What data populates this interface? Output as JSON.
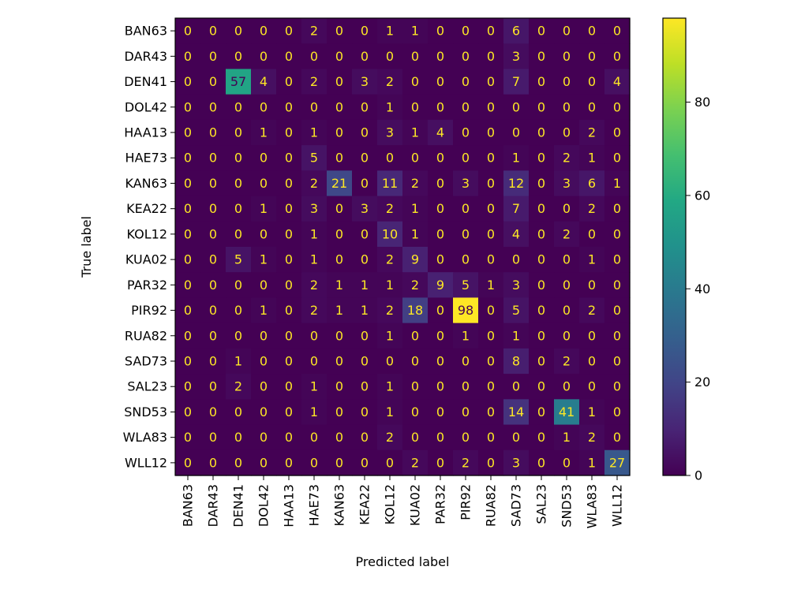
{
  "chart_data": {
    "type": "heatmap",
    "title": "",
    "xlabel": "Predicted label",
    "ylabel": "True label",
    "x_categories": [
      "BAN63",
      "DAR43",
      "DEN41",
      "DOL42",
      "HAA13",
      "HAE73",
      "KAN63",
      "KEA22",
      "KOL12",
      "KUA02",
      "PAR32",
      "PIR92",
      "RUA82",
      "SAD73",
      "SAL23",
      "SND53",
      "WLA83",
      "WLL12"
    ],
    "y_categories": [
      "BAN63",
      "DAR43",
      "DEN41",
      "DOL42",
      "HAA13",
      "HAE73",
      "KAN63",
      "KEA22",
      "KOL12",
      "KUA02",
      "PAR32",
      "PIR92",
      "RUA82",
      "SAD73",
      "SAL23",
      "SND53",
      "WLA83",
      "WLL12"
    ],
    "values": [
      [
        0,
        0,
        0,
        0,
        0,
        2,
        0,
        0,
        1,
        1,
        0,
        0,
        0,
        6,
        0,
        0,
        0,
        0
      ],
      [
        0,
        0,
        0,
        0,
        0,
        0,
        0,
        0,
        0,
        0,
        0,
        0,
        0,
        3,
        0,
        0,
        0,
        0
      ],
      [
        0,
        0,
        57,
        4,
        0,
        2,
        0,
        3,
        2,
        0,
        0,
        0,
        0,
        7,
        0,
        0,
        0,
        4
      ],
      [
        0,
        0,
        0,
        0,
        0,
        0,
        0,
        0,
        1,
        0,
        0,
        0,
        0,
        0,
        0,
        0,
        0,
        0
      ],
      [
        0,
        0,
        0,
        1,
        0,
        1,
        0,
        0,
        3,
        1,
        4,
        0,
        0,
        0,
        0,
        0,
        2,
        0
      ],
      [
        0,
        0,
        0,
        0,
        0,
        5,
        0,
        0,
        0,
        0,
        0,
        0,
        0,
        1,
        0,
        2,
        1,
        0
      ],
      [
        0,
        0,
        0,
        0,
        0,
        2,
        21,
        0,
        11,
        2,
        0,
        3,
        0,
        12,
        0,
        3,
        6,
        1
      ],
      [
        0,
        0,
        0,
        1,
        0,
        3,
        0,
        3,
        2,
        1,
        0,
        0,
        0,
        7,
        0,
        0,
        2,
        0
      ],
      [
        0,
        0,
        0,
        0,
        0,
        1,
        0,
        0,
        10,
        1,
        0,
        0,
        0,
        4,
        0,
        2,
        0,
        0
      ],
      [
        0,
        0,
        5,
        1,
        0,
        1,
        0,
        0,
        2,
        9,
        0,
        0,
        0,
        0,
        0,
        0,
        1,
        0
      ],
      [
        0,
        0,
        0,
        0,
        0,
        2,
        1,
        1,
        1,
        2,
        9,
        5,
        1,
        3,
        0,
        0,
        0,
        0
      ],
      [
        0,
        0,
        0,
        1,
        0,
        2,
        1,
        1,
        2,
        18,
        0,
        98,
        0,
        5,
        0,
        0,
        2,
        0
      ],
      [
        0,
        0,
        0,
        0,
        0,
        0,
        0,
        0,
        1,
        0,
        0,
        1,
        0,
        1,
        0,
        0,
        0,
        0
      ],
      [
        0,
        0,
        1,
        0,
        0,
        0,
        0,
        0,
        0,
        0,
        0,
        0,
        0,
        8,
        0,
        2,
        0,
        0
      ],
      [
        0,
        0,
        2,
        0,
        0,
        1,
        0,
        0,
        1,
        0,
        0,
        0,
        0,
        0,
        0,
        0,
        0,
        0
      ],
      [
        0,
        0,
        0,
        0,
        0,
        1,
        0,
        0,
        1,
        0,
        0,
        0,
        0,
        14,
        0,
        41,
        1,
        0
      ],
      [
        0,
        0,
        0,
        0,
        0,
        0,
        0,
        0,
        2,
        0,
        0,
        0,
        0,
        0,
        0,
        1,
        2,
        0
      ],
      [
        0,
        0,
        0,
        0,
        0,
        0,
        0,
        0,
        0,
        2,
        0,
        2,
        0,
        3,
        0,
        0,
        1,
        27
      ]
    ],
    "colormap": "viridis",
    "vmin": 0,
    "vmax": 98,
    "colorbar_ticks": [
      0,
      20,
      40,
      60,
      80
    ],
    "grid": false,
    "text_color_low": "#fde725",
    "text_color_high": "#440154"
  }
}
